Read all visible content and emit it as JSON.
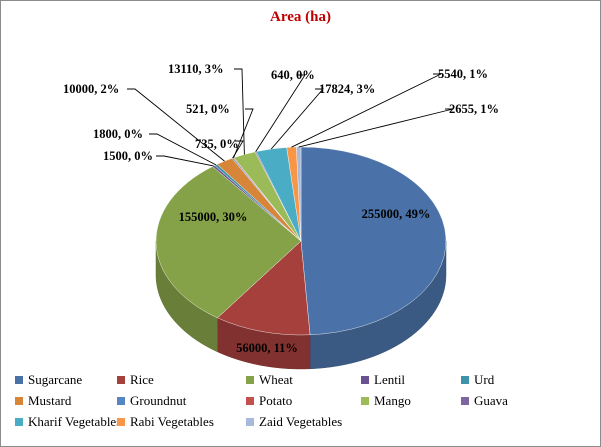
{
  "chart_data": {
    "type": "pie",
    "title": "Area (ha)",
    "categories": [
      "Sugarcane",
      "Rice",
      "Wheat",
      "Lentil",
      "Urd",
      "Mustard",
      "Groundnut",
      "Potato",
      "Mango",
      "Guava",
      "Kharif Vegetables",
      "Rabi Vegetables",
      "Zaid Vegetables"
    ],
    "values": [
      255000,
      56000,
      155000,
      1500,
      1800,
      10000,
      735,
      521,
      13110,
      640,
      17824,
      5540,
      2655
    ],
    "data_labels": [
      "255000, 49%",
      "56000, 11%",
      "155000, 30%",
      "1500, 0%",
      "1800, 0%",
      "10000, 2%",
      "735, 0%",
      "521, 0%",
      "13110, 3%",
      "640, 0%",
      "17824, 3%",
      "5540, 1%",
      "2655, 1%"
    ],
    "colors": [
      "#4a72a8",
      "#a5403d",
      "#86a249",
      "#6b5190",
      "#3d93aa",
      "#d78539",
      "#5685c4",
      "#c4504d",
      "#9bbb59",
      "#8064a2",
      "#4bacc6",
      "#f79646",
      "#a9b9dc"
    ],
    "legend_position": "bottom",
    "style": "3d"
  }
}
